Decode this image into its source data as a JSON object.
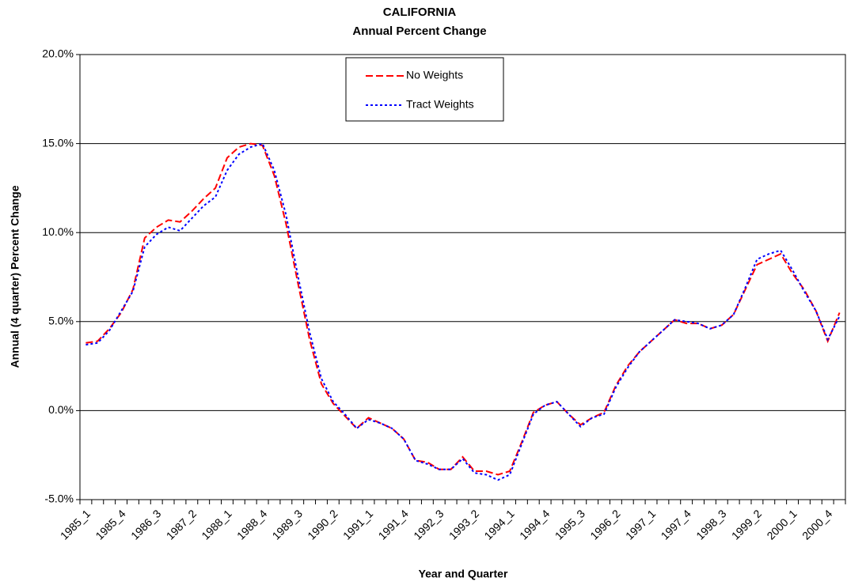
{
  "chart_data": {
    "type": "line",
    "title": "CALIFORNIA",
    "subtitle": "Annual Percent Change",
    "x_label": "Year and Quarter",
    "y_label": "Annual (4 quarter) Percent Change",
    "categories": [
      "1985_1",
      null,
      null,
      "1985_4",
      null,
      null,
      "1986_3",
      null,
      null,
      "1987_2",
      null,
      null,
      "1988_1",
      null,
      null,
      "1988_4",
      null,
      null,
      "1989_3",
      null,
      null,
      "1990_2",
      null,
      null,
      "1991_1",
      null,
      null,
      "1991_4",
      null,
      null,
      "1992_3",
      null,
      null,
      "1993_2",
      null,
      null,
      "1994_1",
      null,
      null,
      "1994_4",
      null,
      null,
      "1995_3",
      null,
      null,
      "1996_2",
      null,
      null,
      "1997_1",
      null,
      null,
      "1997_4",
      null,
      null,
      "1998_3",
      null,
      null,
      "1999_2",
      null,
      null,
      "2000_1",
      null,
      null,
      "2000_4",
      null
    ],
    "series": [
      {
        "name": "No Weights",
        "color": "#ff0000",
        "dash": "dashed",
        "values": [
          3.8,
          3.9,
          4.6,
          5.5,
          6.8,
          9.7,
          10.3,
          10.7,
          10.6,
          11.2,
          11.9,
          12.5,
          14.2,
          14.8,
          15.0,
          14.9,
          13.2,
          10.5,
          7.2,
          4.0,
          1.5,
          0.4,
          -0.3,
          -1.0,
          -0.4,
          -0.7,
          -1.0,
          -1.6,
          -2.8,
          -2.9,
          -3.3,
          -3.3,
          -2.6,
          -3.4,
          -3.4,
          -3.6,
          -3.4,
          -1.8,
          -0.1,
          0.3,
          0.5,
          -0.2,
          -0.8,
          -0.4,
          -0.1,
          1.4,
          2.5,
          3.3,
          3.9,
          4.5,
          5.1,
          4.9,
          4.9,
          4.6,
          4.8,
          5.4,
          6.8,
          8.2,
          8.5,
          8.8,
          7.7,
          6.8,
          5.6,
          3.9,
          5.5
        ]
      },
      {
        "name": "Tract Weights",
        "color": "#0000ff",
        "dash": "dotted",
        "values": [
          3.7,
          3.8,
          4.5,
          5.6,
          6.7,
          9.2,
          9.9,
          10.3,
          10.1,
          10.8,
          11.5,
          12.0,
          13.5,
          14.4,
          14.8,
          15.0,
          13.5,
          11.0,
          7.6,
          4.4,
          1.8,
          0.5,
          -0.2,
          -1.0,
          -0.5,
          -0.7,
          -1.0,
          -1.6,
          -2.8,
          -3.0,
          -3.3,
          -3.3,
          -2.7,
          -3.5,
          -3.6,
          -3.9,
          -3.6,
          -1.9,
          -0.2,
          0.3,
          0.5,
          -0.2,
          -0.9,
          -0.4,
          -0.2,
          1.3,
          2.4,
          3.3,
          3.9,
          4.5,
          5.1,
          5.0,
          4.9,
          4.6,
          4.8,
          5.4,
          6.9,
          8.5,
          8.8,
          9.0,
          7.9,
          6.7,
          5.6,
          4.0,
          5.3
        ]
      }
    ],
    "ylim": [
      -5,
      20
    ],
    "yticks": [
      {
        "value": -5,
        "label": "-5.0%"
      },
      {
        "value": 0,
        "label": "0.0%"
      },
      {
        "value": 5,
        "label": "5.0%"
      },
      {
        "value": 10,
        "label": "10.0%"
      },
      {
        "value": 15,
        "label": "15.0%"
      },
      {
        "value": 20,
        "label": "20.0%"
      }
    ],
    "grid": true
  }
}
